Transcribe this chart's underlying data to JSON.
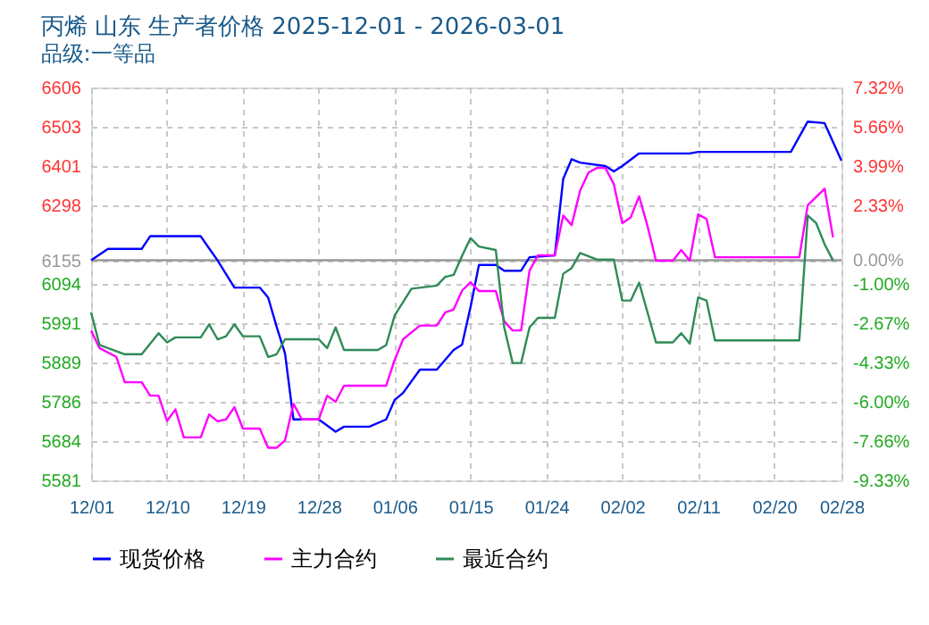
{
  "chart_data": {
    "type": "line",
    "title": "丙烯  山东 生产者价格 2025-12-01 - 2026-03-01",
    "subtitle": "品级:一等品",
    "xlim": [
      "2025-12-01",
      "2026-02-28"
    ],
    "xticks": [
      {
        "value": "2025-12-01",
        "label": "12/01"
      },
      {
        "value": "2025-12-10",
        "label": "12/10"
      },
      {
        "value": "2025-12-19",
        "label": "12/19"
      },
      {
        "value": "2025-12-28",
        "label": "12/28"
      },
      {
        "value": "2026-01-06",
        "label": "01/06"
      },
      {
        "value": "2026-01-15",
        "label": "01/15"
      },
      {
        "value": "2026-01-24",
        "label": "01/24"
      },
      {
        "value": "2026-02-02",
        "label": "02/02"
      },
      {
        "value": "2026-02-11",
        "label": "02/11"
      },
      {
        "value": "2026-02-20",
        "label": "02/20"
      },
      {
        "value": "2026-02-28",
        "label": "02/28"
      }
    ],
    "ylim": [
      5581,
      6606
    ],
    "yticks": [
      5581,
      5684,
      5786,
      5889,
      5991,
      6094,
      6155,
      6298,
      6401,
      6503,
      6606
    ],
    "y2lim": [
      -9.33,
      7.32
    ],
    "y2ticks": [
      {
        "value": -9.33,
        "label": "-9.33%"
      },
      {
        "value": -7.66,
        "label": "-7.66%"
      },
      {
        "value": -6.0,
        "label": "-6.00%"
      },
      {
        "value": -4.33,
        "label": "-4.33%"
      },
      {
        "value": -2.67,
        "label": "-2.67%"
      },
      {
        "value": -1.0,
        "label": "-1.00%"
      },
      {
        "value": 0,
        "label": "0.00%"
      },
      {
        "value": 2.33,
        "label": "2.33%"
      },
      {
        "value": 3.99,
        "label": "3.99%"
      },
      {
        "value": 5.66,
        "label": "5.66%"
      },
      {
        "value": 7.32,
        "label": "7.32%"
      }
    ],
    "ref_lines": [
      {
        "axis": "y2",
        "value": 0,
        "color": "#999999"
      }
    ],
    "grid": true,
    "legend": "bottom",
    "line_style": "solid",
    "marker": "none",
    "series": [
      {
        "name": "现货价格",
        "color": "#0000ff",
        "x": [
          "2025-12-01",
          "2025-12-03",
          "2025-12-07",
          "2025-12-08",
          "2025-12-14",
          "2025-12-15",
          "2025-12-16",
          "2025-12-18",
          "2025-12-21",
          "2025-12-22",
          "2025-12-23",
          "2025-12-24",
          "2025-12-25",
          "2025-12-28",
          "2025-12-30",
          "2025-12-31",
          "2026-01-03",
          "2026-01-05",
          "2026-01-06",
          "2026-01-07",
          "2026-01-09",
          "2026-01-11",
          "2026-01-13",
          "2026-01-14",
          "2026-01-15",
          "2026-01-16",
          "2026-01-18",
          "2026-01-19",
          "2026-01-21",
          "2026-01-22",
          "2026-01-25",
          "2026-01-26",
          "2026-01-27",
          "2026-01-28",
          "2026-01-31",
          "2026-02-01",
          "2026-02-02",
          "2026-02-04",
          "2026-02-10",
          "2026-02-11",
          "2026-02-22",
          "2026-02-24",
          "2026-02-26",
          "2026-02-28"
        ],
        "values": [
          6155,
          6185,
          6185,
          6218,
          6218,
          6186,
          6155,
          6084,
          6084,
          6058,
          5982,
          5912,
          5740,
          5740,
          5708,
          5721,
          5721,
          5740,
          5791,
          5809,
          5870,
          5870,
          5921,
          5935,
          6033,
          6143,
          6143,
          6128,
          6128,
          6163,
          6168,
          6368,
          6419,
          6410,
          6401,
          6387,
          6401,
          6434,
          6434,
          6438,
          6438,
          6517,
          6513,
          6415
        ]
      },
      {
        "name": "主力合约",
        "color": "#ff00ff",
        "x": [
          "2025-12-01",
          "2025-12-02",
          "2025-12-04",
          "2025-12-05",
          "2025-12-07",
          "2025-12-08",
          "2025-12-09",
          "2025-12-10",
          "2025-12-11",
          "2025-12-12",
          "2025-12-14",
          "2025-12-15",
          "2025-12-16",
          "2025-12-17",
          "2025-12-18",
          "2025-12-19",
          "2025-12-21",
          "2025-12-22",
          "2025-12-23",
          "2025-12-24",
          "2025-12-25",
          "2025-12-26",
          "2025-12-28",
          "2025-12-29",
          "2025-12-30",
          "2025-12-31",
          "2026-01-05",
          "2026-01-06",
          "2026-01-07",
          "2026-01-09",
          "2026-01-11",
          "2026-01-12",
          "2026-01-13",
          "2026-01-14",
          "2026-01-15",
          "2026-01-16",
          "2026-01-18",
          "2026-01-19",
          "2026-01-20",
          "2026-01-21",
          "2026-01-22",
          "2026-01-23",
          "2026-01-25",
          "2026-01-26",
          "2026-01-27",
          "2026-01-28",
          "2026-01-29",
          "2026-01-30",
          "2026-01-31",
          "2026-02-01",
          "2026-02-02",
          "2026-02-03",
          "2026-02-04",
          "2026-02-05",
          "2026-02-06",
          "2026-02-08",
          "2026-02-09",
          "2026-02-10",
          "2026-02-11",
          "2026-02-12",
          "2026-02-13",
          "2026-02-23",
          "2026-02-24",
          "2026-02-26",
          "2026-02-27"
        ],
        "values": [
          5972,
          5926,
          5903,
          5837,
          5837,
          5802,
          5802,
          5736,
          5766,
          5693,
          5693,
          5753,
          5735,
          5740,
          5772,
          5716,
          5716,
          5666,
          5666,
          5685,
          5781,
          5740,
          5740,
          5802,
          5786,
          5828,
          5828,
          5895,
          5949,
          5985,
          5985,
          6019,
          6027,
          6076,
          6098,
          6075,
          6075,
          5996,
          5972,
          5972,
          6128,
          6168,
          6168,
          6272,
          6247,
          6337,
          6384,
          6396,
          6396,
          6354,
          6252,
          6267,
          6322,
          6244,
          6154,
          6154,
          6182,
          6154,
          6275,
          6263,
          6163,
          6163,
          6299,
          6342,
          6215
        ]
      },
      {
        "name": "最近合约",
        "color": "#2e8b57",
        "x": [
          "2025-12-01",
          "2025-12-02",
          "2025-12-05",
          "2025-12-07",
          "2025-12-09",
          "2025-12-10",
          "2025-12-11",
          "2025-12-14",
          "2025-12-15",
          "2025-12-16",
          "2025-12-17",
          "2025-12-18",
          "2025-12-19",
          "2025-12-21",
          "2025-12-22",
          "2025-12-23",
          "2025-12-24",
          "2025-12-28",
          "2025-12-29",
          "2025-12-30",
          "2025-12-31",
          "2026-01-04",
          "2026-01-05",
          "2026-01-06",
          "2026-01-08",
          "2026-01-11",
          "2026-01-12",
          "2026-01-13",
          "2026-01-14",
          "2026-01-15",
          "2026-01-16",
          "2026-01-18",
          "2026-01-19",
          "2026-01-20",
          "2026-01-21",
          "2026-01-22",
          "2026-01-23",
          "2026-01-25",
          "2026-01-26",
          "2026-01-27",
          "2026-01-28",
          "2026-01-30",
          "2026-02-01",
          "2026-02-02",
          "2026-02-03",
          "2026-02-04",
          "2026-02-06",
          "2026-02-08",
          "2026-02-09",
          "2026-02-10",
          "2026-02-11",
          "2026-02-12",
          "2026-02-13",
          "2026-02-23",
          "2026-02-24",
          "2026-02-25",
          "2026-02-26",
          "2026-02-27"
        ],
        "values": [
          6019,
          5934,
          5910,
          5910,
          5965,
          5941,
          5954,
          5954,
          5988,
          5949,
          5957,
          5988,
          5957,
          5957,
          5903,
          5910,
          5949,
          5949,
          5926,
          5980,
          5921,
          5921,
          5934,
          6011,
          6081,
          6089,
          6112,
          6117,
          6167,
          6213,
          6191,
          6182,
          5980,
          5887,
          5887,
          5980,
          6005,
          6005,
          6120,
          6135,
          6174,
          6157,
          6157,
          6050,
          6050,
          6097,
          5941,
          5941,
          5965,
          5938,
          6058,
          6050,
          5946,
          5946,
          6272,
          6252,
          6197,
          6155
        ]
      }
    ]
  }
}
